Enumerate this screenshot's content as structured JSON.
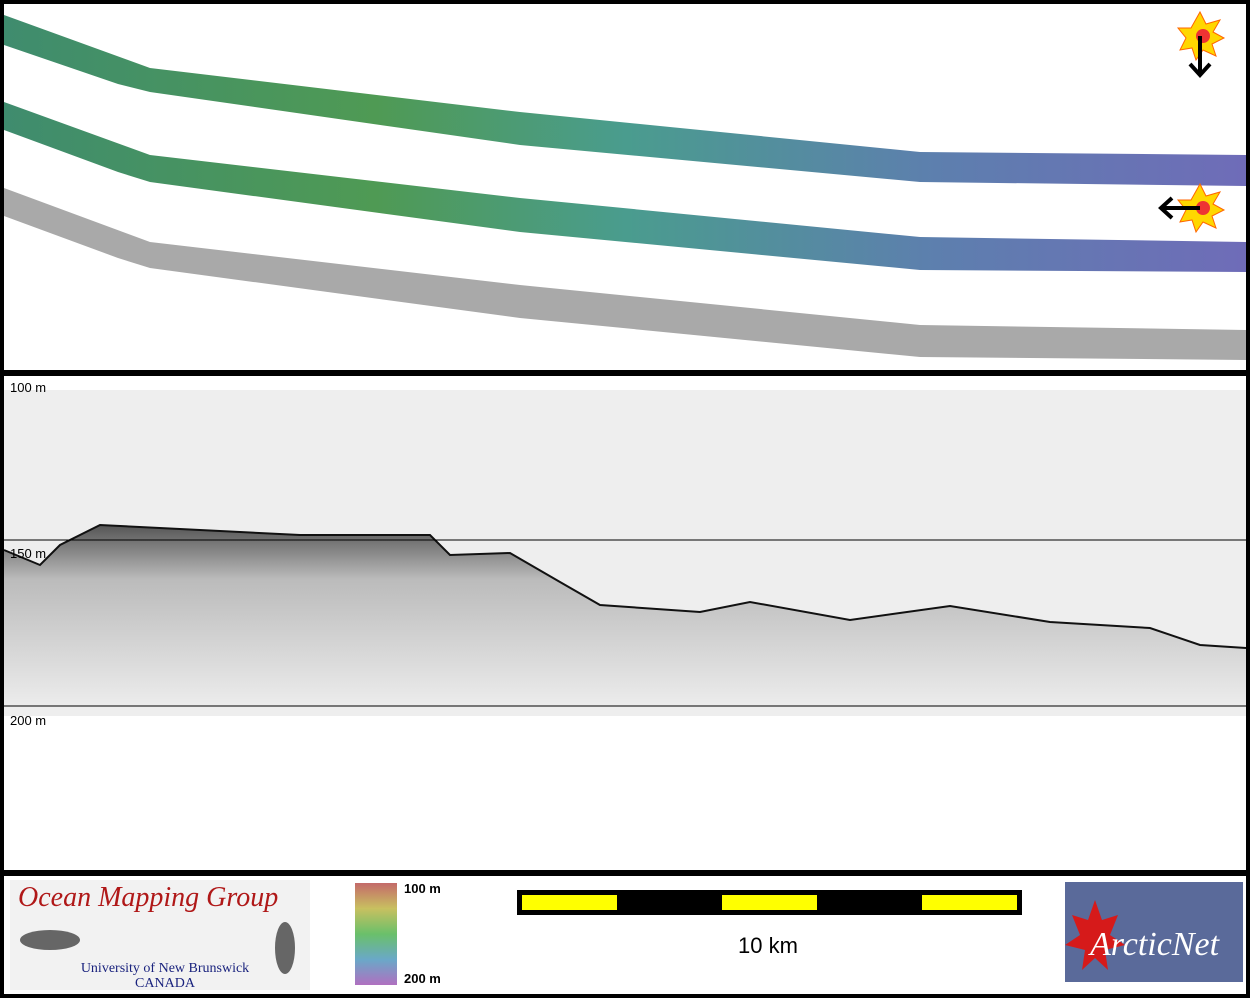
{
  "profile": {
    "depth_labels": [
      "100 m",
      "150 m",
      "200 m"
    ]
  },
  "legend": {
    "color_bar_labels": [
      "100 m",
      "200 m"
    ],
    "scale_bar_label": "10 km"
  },
  "logos": {
    "omg": {
      "title": "Ocean Mapping Group",
      "line1": "University of New Brunswick",
      "line2": "CANADA"
    },
    "arcticnet": "ArcticNet"
  }
}
